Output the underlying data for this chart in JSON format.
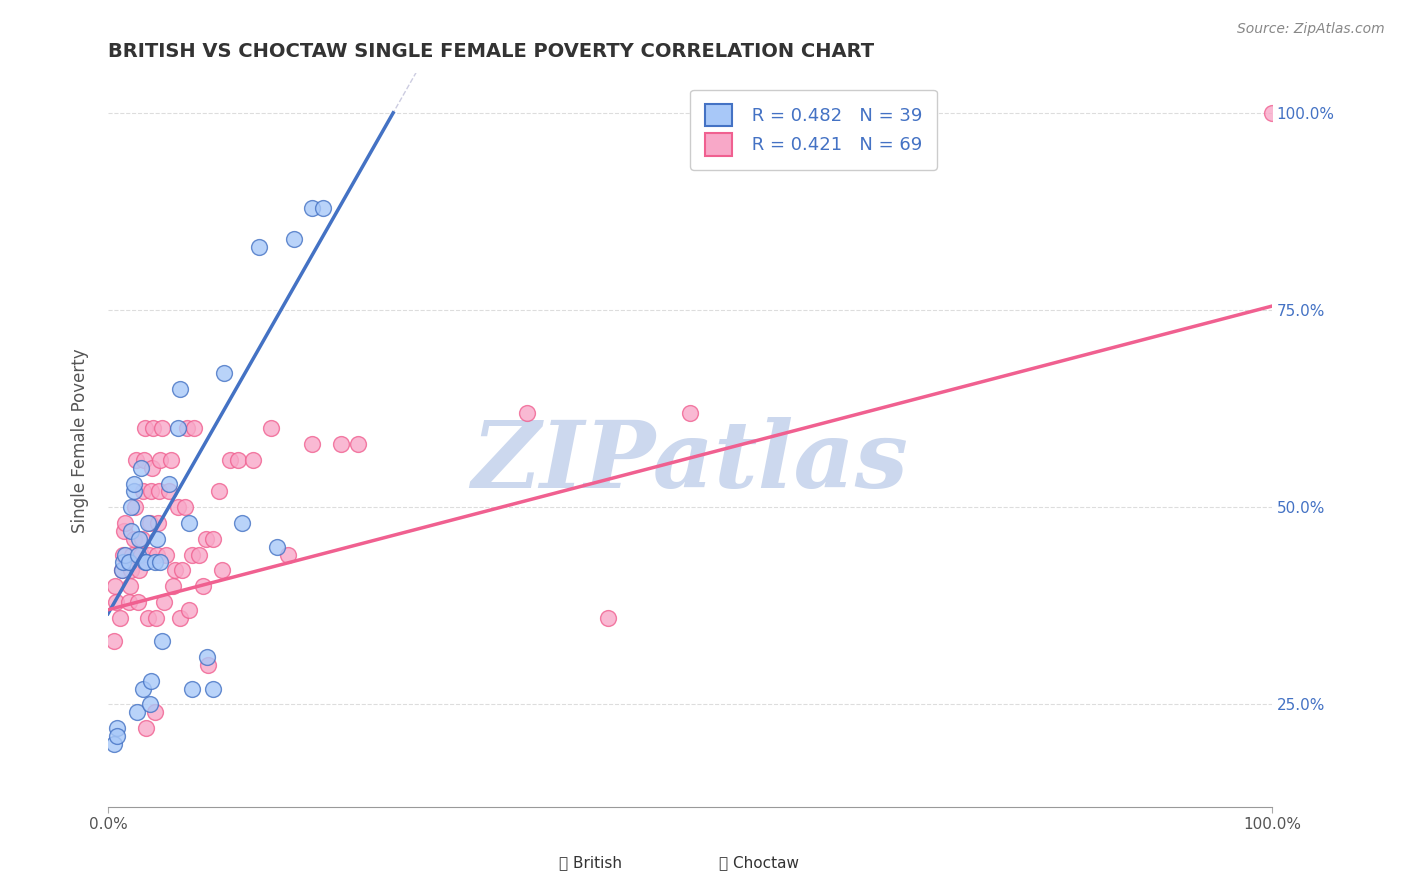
{
  "title": "BRITISH VS CHOCTAW SINGLE FEMALE POVERTY CORRELATION CHART",
  "source": "Source: ZipAtlas.com",
  "xlabel": "",
  "ylabel": "Single Female Poverty",
  "xlim": [
    0.0,
    1.0
  ],
  "ylim": [
    0.12,
    1.05
  ],
  "xtick_labels": [
    "0.0%",
    "100.0%"
  ],
  "ytick_labels": [
    "25.0%",
    "50.0%",
    "75.0%",
    "100.0%"
  ],
  "ytick_positions": [
    0.25,
    0.5,
    0.75,
    1.0
  ],
  "right_ytick_labels": [
    "100.0%",
    "75.0%",
    "50.0%",
    "25.0%"
  ],
  "right_ytick_positions": [
    1.0,
    0.75,
    0.5,
    0.25
  ],
  "watermark": "ZIPatlas",
  "british_color": "#a8c8f8",
  "choctaw_color": "#f8a8c8",
  "british_line_color": "#4472c4",
  "choctaw_line_color": "#f06090",
  "legend_r_british": "R = 0.482",
  "legend_n_british": "N = 39",
  "legend_r_choctaw": "R = 0.421",
  "legend_n_choctaw": "N = 69",
  "british_scatter": [
    [
      0.005,
      0.2
    ],
    [
      0.008,
      0.22
    ],
    [
      0.008,
      0.21
    ],
    [
      0.012,
      0.42
    ],
    [
      0.013,
      0.43
    ],
    [
      0.015,
      0.44
    ],
    [
      0.018,
      0.43
    ],
    [
      0.02,
      0.47
    ],
    [
      0.02,
      0.5
    ],
    [
      0.022,
      0.52
    ],
    [
      0.022,
      0.53
    ],
    [
      0.025,
      0.24
    ],
    [
      0.026,
      0.44
    ],
    [
      0.027,
      0.46
    ],
    [
      0.028,
      0.55
    ],
    [
      0.03,
      0.27
    ],
    [
      0.032,
      0.43
    ],
    [
      0.033,
      0.43
    ],
    [
      0.034,
      0.48
    ],
    [
      0.036,
      0.25
    ],
    [
      0.037,
      0.28
    ],
    [
      0.04,
      0.43
    ],
    [
      0.042,
      0.46
    ],
    [
      0.045,
      0.43
    ],
    [
      0.046,
      0.33
    ],
    [
      0.052,
      0.53
    ],
    [
      0.06,
      0.6
    ],
    [
      0.062,
      0.65
    ],
    [
      0.07,
      0.48
    ],
    [
      0.072,
      0.27
    ],
    [
      0.085,
      0.31
    ],
    [
      0.09,
      0.27
    ],
    [
      0.1,
      0.67
    ],
    [
      0.115,
      0.48
    ],
    [
      0.13,
      0.83
    ],
    [
      0.145,
      0.45
    ],
    [
      0.16,
      0.84
    ],
    [
      0.175,
      0.88
    ],
    [
      0.185,
      0.88
    ]
  ],
  "choctaw_scatter": [
    [
      0.005,
      0.33
    ],
    [
      0.006,
      0.4
    ],
    [
      0.007,
      0.38
    ],
    [
      0.01,
      0.36
    ],
    [
      0.012,
      0.42
    ],
    [
      0.013,
      0.44
    ],
    [
      0.014,
      0.47
    ],
    [
      0.015,
      0.48
    ],
    [
      0.018,
      0.38
    ],
    [
      0.019,
      0.4
    ],
    [
      0.02,
      0.42
    ],
    [
      0.021,
      0.44
    ],
    [
      0.022,
      0.46
    ],
    [
      0.023,
      0.5
    ],
    [
      0.024,
      0.56
    ],
    [
      0.026,
      0.38
    ],
    [
      0.027,
      0.42
    ],
    [
      0.028,
      0.44
    ],
    [
      0.029,
      0.46
    ],
    [
      0.03,
      0.52
    ],
    [
      0.031,
      0.56
    ],
    [
      0.032,
      0.6
    ],
    [
      0.033,
      0.22
    ],
    [
      0.034,
      0.36
    ],
    [
      0.035,
      0.44
    ],
    [
      0.036,
      0.48
    ],
    [
      0.037,
      0.52
    ],
    [
      0.038,
      0.55
    ],
    [
      0.039,
      0.6
    ],
    [
      0.04,
      0.24
    ],
    [
      0.041,
      0.36
    ],
    [
      0.042,
      0.44
    ],
    [
      0.043,
      0.48
    ],
    [
      0.044,
      0.52
    ],
    [
      0.045,
      0.56
    ],
    [
      0.046,
      0.6
    ],
    [
      0.048,
      0.38
    ],
    [
      0.05,
      0.44
    ],
    [
      0.052,
      0.52
    ],
    [
      0.054,
      0.56
    ],
    [
      0.056,
      0.4
    ],
    [
      0.058,
      0.42
    ],
    [
      0.06,
      0.5
    ],
    [
      0.062,
      0.36
    ],
    [
      0.064,
      0.42
    ],
    [
      0.066,
      0.5
    ],
    [
      0.068,
      0.6
    ],
    [
      0.07,
      0.37
    ],
    [
      0.072,
      0.44
    ],
    [
      0.074,
      0.6
    ],
    [
      0.078,
      0.44
    ],
    [
      0.082,
      0.4
    ],
    [
      0.084,
      0.46
    ],
    [
      0.086,
      0.3
    ],
    [
      0.09,
      0.46
    ],
    [
      0.095,
      0.52
    ],
    [
      0.098,
      0.42
    ],
    [
      0.105,
      0.56
    ],
    [
      0.112,
      0.56
    ],
    [
      0.125,
      0.56
    ],
    [
      0.14,
      0.6
    ],
    [
      0.155,
      0.44
    ],
    [
      0.175,
      0.58
    ],
    [
      0.2,
      0.58
    ],
    [
      0.215,
      0.58
    ],
    [
      0.36,
      0.62
    ],
    [
      0.43,
      0.36
    ],
    [
      0.5,
      0.62
    ],
    [
      1.0,
      1.0
    ]
  ],
  "british_trendline": {
    "x_start": 0.0,
    "y_start": 0.365,
    "x_end": 0.245,
    "y_end": 1.0
  },
  "choctaw_trendline": {
    "x_start": 0.0,
    "y_start": 0.37,
    "x_end": 1.0,
    "y_end": 0.755
  },
  "dash_line": {
    "x_start": 0.0,
    "y_start": 0.365,
    "x_end": 0.245,
    "y_end": 1.0
  },
  "background_color": "#ffffff",
  "grid_color": "#dddddd",
  "title_color": "#333333",
  "watermark_color": "#ccd8ee"
}
